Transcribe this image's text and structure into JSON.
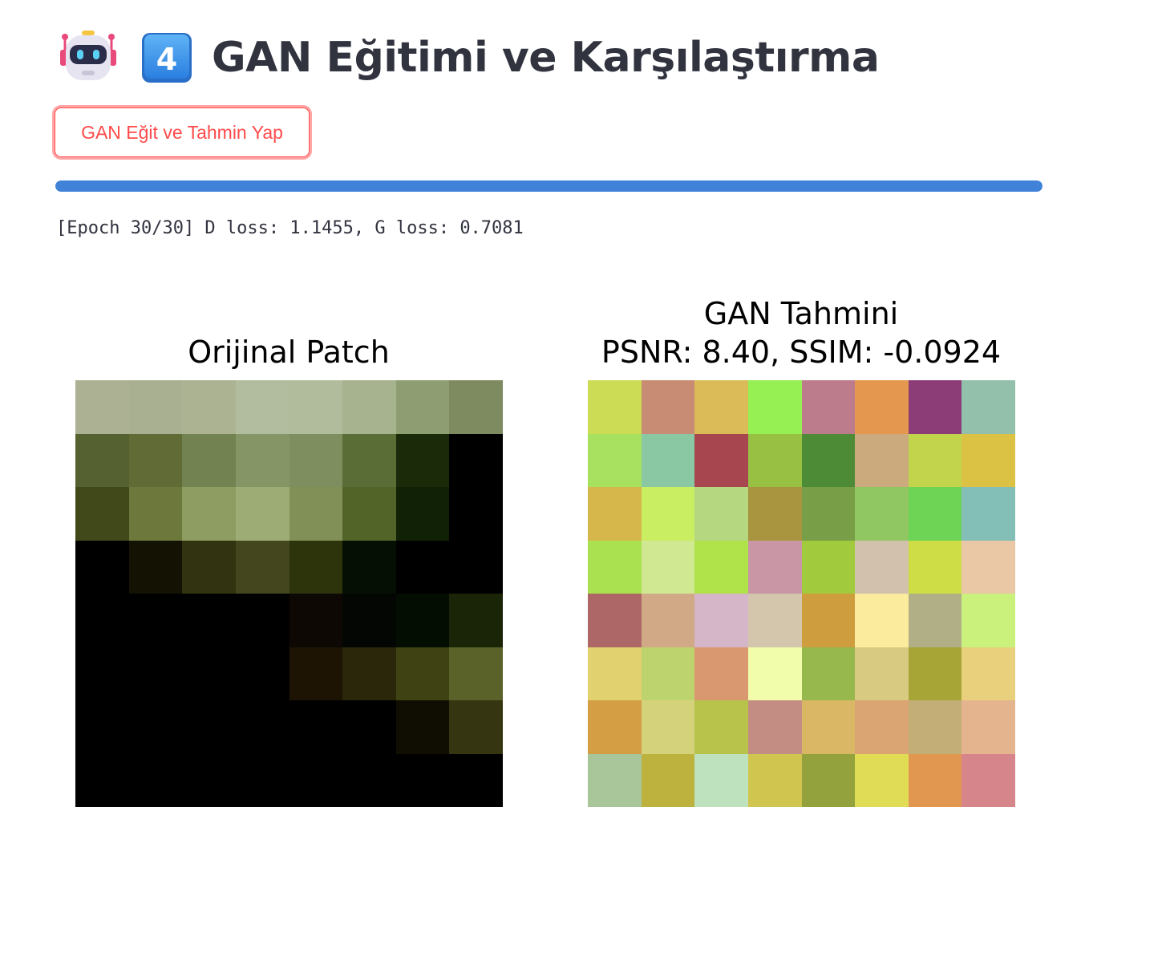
{
  "header": {
    "robot_icon": "robot-face-icon",
    "keycap_icon": "keycap-4-icon",
    "keycap_label": "4",
    "title": "GAN Eğitimi ve Karşılaştırma"
  },
  "actions": {
    "train_button_label": "GAN Eğit ve Tahmin Yap"
  },
  "progress": {
    "value_percent": 100,
    "color": "#3f82d8"
  },
  "log": {
    "text": "[Epoch 30/30] D loss: 1.1455, G loss: 0.7081"
  },
  "figure": {
    "left_title": "Orijinal Patch",
    "right_title_line1": "GAN Tahmini",
    "right_title_line2": "PSNR: 8.40, SSIM: -0.0924",
    "original_patch": [
      [
        "#adb194",
        "#a9b091",
        "#abb393",
        "#b2bc9f",
        "#b1bc9d",
        "#a7b28e",
        "#8f9e72",
        "#7e8a60"
      ],
      [
        "#566131",
        "#606b36",
        "#728250",
        "#869566",
        "#7f8e5e",
        "#5a6d36",
        "#1b2a09",
        "#000000"
      ],
      [
        "#414819",
        "#6d783d",
        "#8e9d62",
        "#9cac74",
        "#819056",
        "#536428",
        "#112105",
        "#000000"
      ],
      [
        "#000000",
        "#141203",
        "#323311",
        "#44471d",
        "#2d340c",
        "#050f04",
        "#000000",
        "#000000"
      ],
      [
        "#000000",
        "#000000",
        "#000000",
        "#000000",
        "#0d0803",
        "#030602",
        "#040d02",
        "#1a2508"
      ],
      [
        "#000000",
        "#000000",
        "#000000",
        "#000000",
        "#1e1404",
        "#2a270b",
        "#3f4313",
        "#5a622a"
      ],
      [
        "#000000",
        "#000000",
        "#000000",
        "#000000",
        "#000000",
        "#000000",
        "#100d02",
        "#353512"
      ],
      [
        "#000000",
        "#000000",
        "#000000",
        "#000000",
        "#000000",
        "#000000",
        "#000000",
        "#000000"
      ]
    ],
    "gan_prediction": [
      [
        "#cddc55",
        "#c88c74",
        "#dabb57",
        "#96ef53",
        "#bd7c8b",
        "#e4974e",
        "#8c3c76",
        "#93c0ab"
      ],
      [
        "#a8e160",
        "#89c8a3",
        "#a8464f",
        "#98c043",
        "#4d8b36",
        "#cbab7e",
        "#c2d44c",
        "#dcc244"
      ],
      [
        "#d6b74b",
        "#c9ee61",
        "#b4d780",
        "#a9943f",
        "#789f47",
        "#90c763",
        "#6dd455",
        "#83beb7"
      ],
      [
        "#aae150",
        "#cfe891",
        "#b0e24a",
        "#c896a4",
        "#a1cb3c",
        "#d2c2ad",
        "#cedc46",
        "#eac8a6"
      ],
      [
        "#ad6766",
        "#d2a986",
        "#d5b5c8",
        "#d4c5ad",
        "#cd9d3e",
        "#fbeb9d",
        "#b1af85",
        "#c9f17c"
      ],
      [
        "#e1d26f",
        "#bdd36e",
        "#d99870",
        "#f1fdaa",
        "#96b84d",
        "#d8ca80",
        "#a7a536",
        "#e9d07c"
      ],
      [
        "#d49e44",
        "#d4d27b",
        "#b7c34b",
        "#c38d84",
        "#dab765",
        "#dba573",
        "#c4ae78",
        "#e4b48f"
      ],
      [
        "#a9c69b",
        "#beb23e",
        "#bde2bd",
        "#cfc54f",
        "#93a23d",
        "#e1dc55",
        "#e1974f",
        "#d6868a"
      ]
    ]
  }
}
